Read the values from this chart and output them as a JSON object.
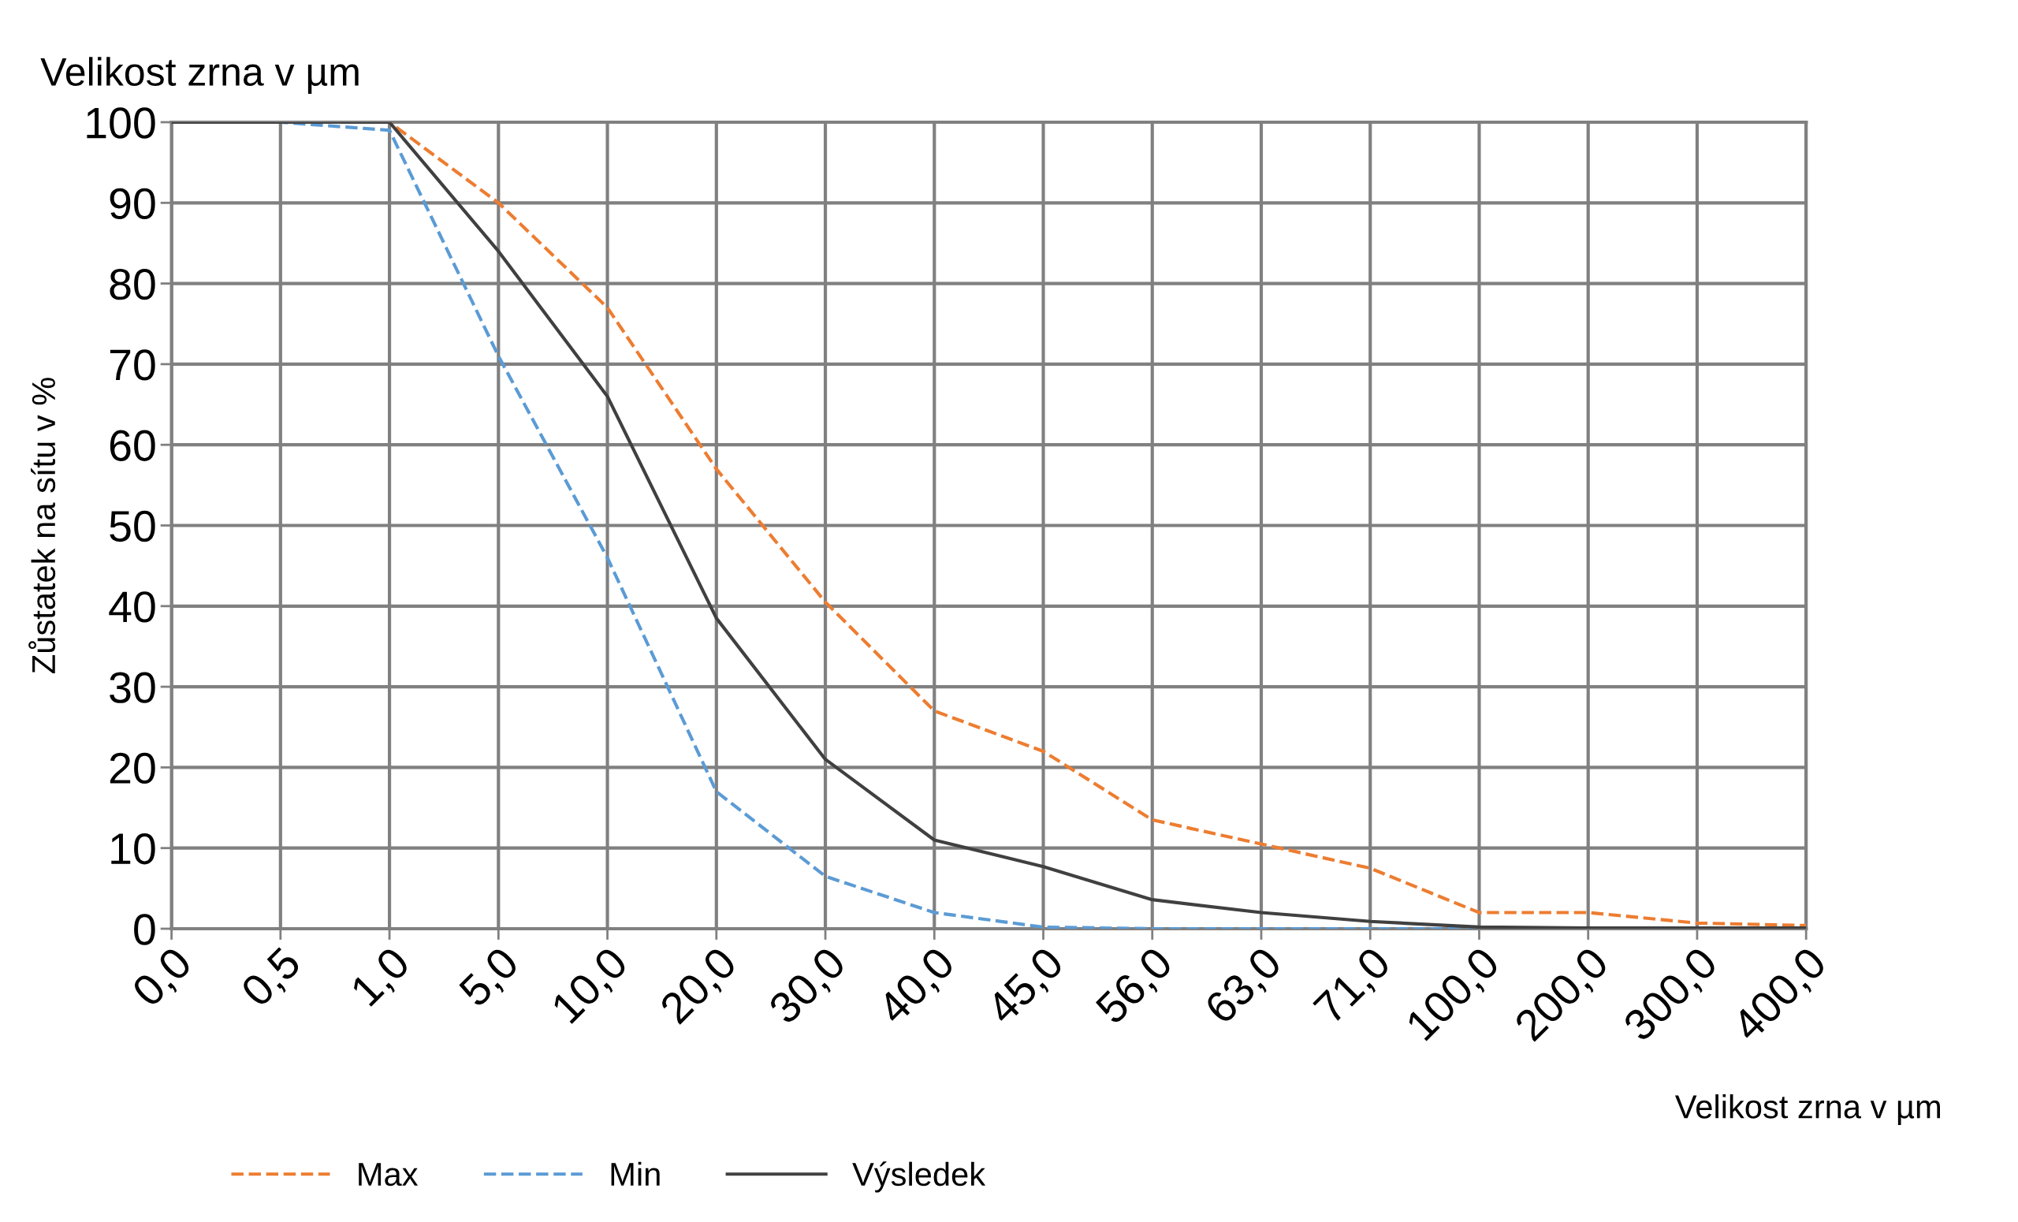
{
  "chart_data": {
    "type": "line",
    "title": "Velikost zrna v µm",
    "xlabel": "Velikost zrna v µm",
    "ylabel": "Zůstatek na sítu v %",
    "categories": [
      "0,0",
      "0,5",
      "1,0",
      "5,0",
      "10,0",
      "20,0",
      "30,0",
      "40,0",
      "45,0",
      "56,0",
      "63,0",
      "71,0",
      "100,0",
      "200,0",
      "300,0",
      "400,0"
    ],
    "series": [
      {
        "name": "Max",
        "color": "#ed7d31",
        "line_style": "dashed",
        "values": [
          100,
          100,
          100,
          90,
          77,
          57,
          40.5,
          27,
          22,
          13.5,
          10.5,
          7.5,
          2,
          2,
          0.7,
          0.4
        ]
      },
      {
        "name": "Min",
        "color": "#5b9bd5",
        "line_style": "dashed",
        "values": [
          100,
          100,
          99,
          71,
          46,
          17,
          6.5,
          2,
          0.2,
          0,
          0,
          0,
          0,
          0,
          null,
          null
        ]
      },
      {
        "name": "Výsledek",
        "color": "#404040",
        "line_style": "solid",
        "values": [
          100,
          100,
          100,
          84,
          66,
          38.5,
          21,
          11,
          7.7,
          3.6,
          2,
          0.9,
          0.2,
          0.1,
          0.1,
          0.1
        ]
      }
    ],
    "ylim": [
      0,
      100
    ],
    "yticks": [
      0,
      10,
      20,
      30,
      40,
      50,
      60,
      70,
      80,
      90,
      100
    ],
    "grid": true,
    "legend": "bottom left",
    "marker": "none"
  }
}
